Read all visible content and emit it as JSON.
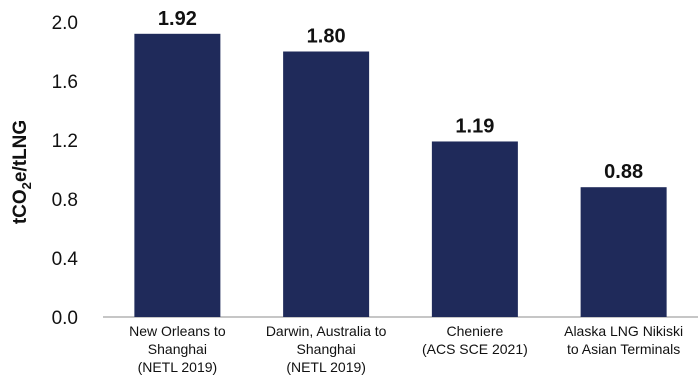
{
  "chart_data": {
    "type": "bar",
    "categories": [
      [
        "New Orleans to",
        "Shanghai",
        "(NETL 2019)"
      ],
      [
        "Darwin, Australia to",
        "Shanghai",
        "(NETL 2019)"
      ],
      [
        "Cheniere",
        "(ACS SCE 2021)"
      ],
      [
        "Alaska LNG Nikiski",
        "to Asian Terminals"
      ]
    ],
    "values": [
      1.92,
      1.8,
      1.19,
      0.88
    ],
    "data_labels": [
      "1.92",
      "1.80",
      "1.19",
      "0.88"
    ],
    "ylabel": {
      "prefix": "tCO",
      "subscript": "2",
      "suffix": "e/tLNG"
    },
    "ylim": [
      0,
      2.0
    ],
    "yticks": [
      "0.0",
      "0.4",
      "0.8",
      "1.2",
      "1.6",
      "2.0"
    ],
    "grid": false,
    "legend": "none",
    "bar_color": "#1f2a5a"
  }
}
